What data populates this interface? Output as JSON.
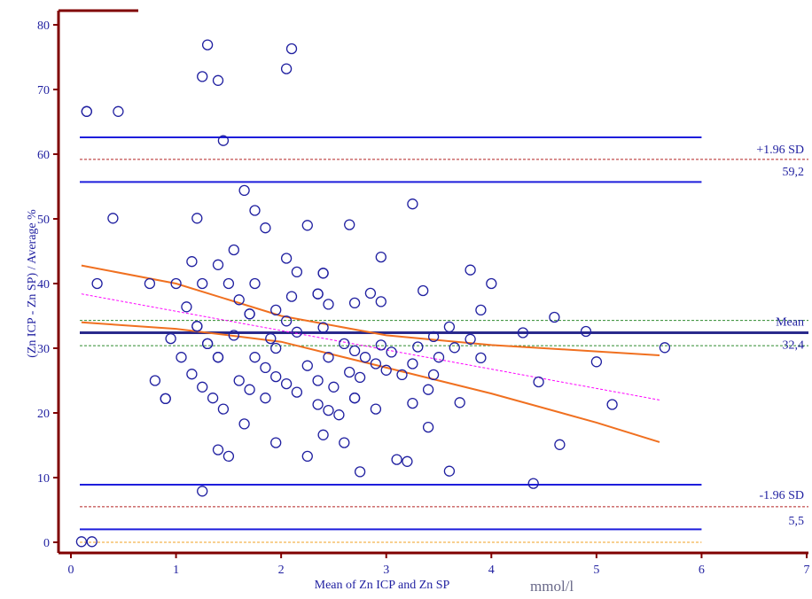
{
  "chart_data": {
    "type": "scatter",
    "title": "",
    "xlabel": "Mean of Zn ICP and Zn SP",
    "xunit": "mmol/l",
    "ylabel": "(Zn ICP - Zn SP) / Average %",
    "xlim": [
      0,
      7
    ],
    "ylim": [
      -2,
      82
    ],
    "xticks": [
      0,
      1,
      2,
      3,
      4,
      5,
      6,
      7
    ],
    "yticks": [
      0,
      10,
      20,
      30,
      40,
      50,
      60,
      70,
      80
    ],
    "grid": false,
    "colors": {
      "axes": "#800000",
      "ticks": "#1f1fa0",
      "points": "#1f1fa0",
      "mean_line": "#2a2a8c",
      "ci_lines": "#1e1edc",
      "loa_dashed": "#b22222",
      "mean_ci_dashed": "#2e8b2e",
      "regression": "#ff00ff",
      "regression_ci": "#f07020",
      "zero_line": "#f0a020"
    },
    "annotations": {
      "upper_label": "+1.96 SD",
      "upper_value": "59,2",
      "mean_label": "Mean",
      "mean_value": "32,4",
      "lower_label": "-1.96 SD",
      "lower_value": "5,5"
    },
    "reference_lines": {
      "mean": 32.4,
      "mean_ci": [
        30.4,
        34.3
      ],
      "upper_loa": 59.2,
      "upper_loa_ci": [
        55.7,
        62.6
      ],
      "lower_loa": 5.5,
      "lower_loa_ci": [
        2.0,
        8.9
      ],
      "zero": 0,
      "x_extent": [
        0,
        6
      ]
    },
    "regression": {
      "line": [
        [
          0.1,
          38.4
        ],
        [
          5.6,
          22.0
        ]
      ],
      "ci_upper": [
        [
          0.1,
          42.8
        ],
        [
          1.0,
          40.0
        ],
        [
          2.0,
          35.0
        ],
        [
          3.0,
          32.0
        ],
        [
          4.0,
          30.5
        ],
        [
          5.0,
          29.5
        ],
        [
          5.6,
          28.9
        ]
      ],
      "ci_lower": [
        [
          0.1,
          34.0
        ],
        [
          1.0,
          33.0
        ],
        [
          2.0,
          31.0
        ],
        [
          3.0,
          27.0
        ],
        [
          4.0,
          23.0
        ],
        [
          5.0,
          18.5
        ],
        [
          5.6,
          15.5
        ]
      ]
    },
    "points": [
      [
        0.1,
        0.1
      ],
      [
        0.2,
        0.1
      ],
      [
        0.15,
        66.6
      ],
      [
        0.15,
        66.6
      ],
      [
        0.45,
        66.6
      ],
      [
        0.25,
        40.0
      ],
      [
        0.4,
        50.1
      ],
      [
        1.3,
        76.9
      ],
      [
        2.1,
        76.3
      ],
      [
        1.25,
        72.0
      ],
      [
        1.4,
        71.4
      ],
      [
        2.05,
        73.2
      ],
      [
        1.45,
        62.1
      ],
      [
        1.65,
        54.4
      ],
      [
        1.75,
        51.3
      ],
      [
        1.2,
        50.1
      ],
      [
        1.85,
        48.6
      ],
      [
        2.25,
        49.0
      ],
      [
        2.65,
        49.1
      ],
      [
        3.25,
        52.3
      ],
      [
        1.55,
        45.2
      ],
      [
        1.15,
        43.4
      ],
      [
        1.4,
        42.9
      ],
      [
        2.05,
        43.9
      ],
      [
        2.95,
        44.1
      ],
      [
        2.15,
        41.8
      ],
      [
        2.4,
        41.6
      ],
      [
        2.4,
        41.6
      ],
      [
        3.8,
        42.1
      ],
      [
        4.0,
        40.0
      ],
      [
        0.75,
        40.0
      ],
      [
        1.0,
        40.0
      ],
      [
        1.25,
        40.0
      ],
      [
        1.5,
        40.0
      ],
      [
        1.75,
        40.0
      ],
      [
        2.1,
        38.0
      ],
      [
        2.35,
        38.4
      ],
      [
        2.35,
        38.4
      ],
      [
        2.85,
        38.5
      ],
      [
        3.35,
        38.9
      ],
      [
        2.45,
        36.8
      ],
      [
        2.7,
        37.0
      ],
      [
        2.95,
        37.2
      ],
      [
        1.1,
        36.4
      ],
      [
        1.6,
        37.5
      ],
      [
        1.7,
        35.3
      ],
      [
        1.7,
        35.3
      ],
      [
        1.95,
        35.9
      ],
      [
        2.05,
        34.2
      ],
      [
        3.9,
        35.9
      ],
      [
        4.6,
        34.8
      ],
      [
        1.2,
        33.4
      ],
      [
        1.2,
        33.4
      ],
      [
        2.15,
        32.5
      ],
      [
        2.4,
        33.2
      ],
      [
        3.6,
        33.3
      ],
      [
        4.3,
        32.4
      ],
      [
        4.9,
        32.6
      ],
      [
        1.55,
        32.0
      ],
      [
        0.95,
        31.5
      ],
      [
        1.9,
        31.5
      ],
      [
        2.6,
        30.7
      ],
      [
        1.3,
        30.7
      ],
      [
        1.3,
        30.7
      ],
      [
        1.95,
        30.0
      ],
      [
        2.7,
        29.6
      ],
      [
        3.45,
        31.8
      ],
      [
        3.8,
        31.4
      ],
      [
        3.65,
        30.1
      ],
      [
        3.3,
        30.2
      ],
      [
        2.95,
        30.5
      ],
      [
        3.05,
        29.4
      ],
      [
        3.9,
        28.5
      ],
      [
        5.65,
        30.1
      ],
      [
        1.05,
        28.6
      ],
      [
        1.4,
        28.6
      ],
      [
        1.4,
        28.6
      ],
      [
        1.75,
        28.6
      ],
      [
        2.45,
        28.6
      ],
      [
        2.8,
        28.6
      ],
      [
        3.5,
        28.6
      ],
      [
        5.0,
        27.9
      ],
      [
        1.85,
        27.0
      ],
      [
        2.25,
        27.3
      ],
      [
        2.9,
        27.6
      ],
      [
        3.0,
        26.6
      ],
      [
        3.25,
        27.6
      ],
      [
        3.15,
        25.9
      ],
      [
        3.45,
        25.9
      ],
      [
        2.65,
        26.3
      ],
      [
        0.8,
        25.0
      ],
      [
        1.15,
        26.0
      ],
      [
        1.6,
        25.0
      ],
      [
        1.95,
        25.6
      ],
      [
        2.35,
        25.0
      ],
      [
        2.5,
        24.0
      ],
      [
        2.75,
        25.5
      ],
      [
        1.25,
        24.0
      ],
      [
        1.7,
        23.6
      ],
      [
        2.05,
        24.5
      ],
      [
        2.15,
        23.2
      ],
      [
        3.4,
        23.6
      ],
      [
        4.45,
        24.8
      ],
      [
        1.85,
        22.3
      ],
      [
        0.9,
        22.2
      ],
      [
        0.9,
        22.2
      ],
      [
        1.35,
        22.3
      ],
      [
        2.7,
        22.3
      ],
      [
        2.7,
        22.3
      ],
      [
        3.25,
        21.5
      ],
      [
        3.7,
        21.6
      ],
      [
        5.15,
        21.3
      ],
      [
        1.45,
        20.6
      ],
      [
        2.35,
        21.3
      ],
      [
        2.45,
        20.4
      ],
      [
        2.55,
        19.7
      ],
      [
        2.9,
        20.6
      ],
      [
        1.65,
        18.3
      ],
      [
        3.4,
        17.8
      ],
      [
        2.4,
        16.6
      ],
      [
        1.95,
        15.4
      ],
      [
        2.6,
        15.4
      ],
      [
        4.65,
        15.1
      ],
      [
        1.4,
        14.3
      ],
      [
        1.5,
        13.3
      ],
      [
        2.25,
        13.3
      ],
      [
        3.1,
        12.8
      ],
      [
        3.2,
        12.5
      ],
      [
        2.75,
        10.9
      ],
      [
        3.6,
        11.0
      ],
      [
        4.4,
        9.1
      ],
      [
        1.25,
        7.9
      ]
    ]
  }
}
